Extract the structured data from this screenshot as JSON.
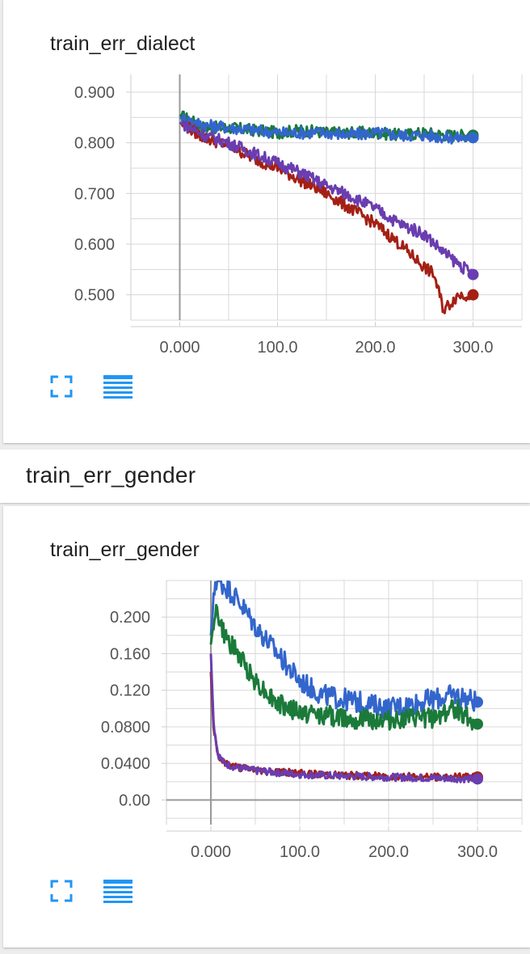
{
  "section": {
    "title": "train_err_gender"
  },
  "colors": {
    "blue": "#3366cc",
    "green": "#1b7a3a",
    "red": "#a42015",
    "purple": "#6a3db0",
    "accent": "#2196f3"
  },
  "icons": [
    "fullscreen-icon",
    "data-table-icon"
  ],
  "chart_data": [
    {
      "type": "line",
      "title": "train_err_dialect",
      "xlabel": "",
      "ylabel": "",
      "xlim": [
        -50,
        350
      ],
      "ylim": [
        0.45,
        0.935
      ],
      "x_ticks": [
        0,
        100,
        200,
        300
      ],
      "x_tick_labels": [
        "0.000",
        "100.0",
        "200.0",
        "300.0"
      ],
      "y_ticks": [
        0.5,
        0.6,
        0.7,
        0.8,
        0.9
      ],
      "y_tick_labels": [
        "0.500",
        "0.600",
        "0.700",
        "0.800",
        "0.900"
      ],
      "grid": true,
      "series": [
        {
          "color": "green",
          "x": [
            0,
            25,
            50,
            75,
            100,
            125,
            150,
            175,
            200,
            225,
            250,
            275,
            300
          ],
          "values": [
            0.855,
            0.83,
            0.83,
            0.825,
            0.82,
            0.825,
            0.82,
            0.82,
            0.82,
            0.815,
            0.82,
            0.815,
            0.815
          ]
        },
        {
          "color": "blue",
          "x": [
            0,
            25,
            50,
            75,
            100,
            125,
            150,
            175,
            200,
            225,
            250,
            275,
            300
          ],
          "values": [
            0.85,
            0.835,
            0.83,
            0.825,
            0.82,
            0.82,
            0.82,
            0.815,
            0.82,
            0.815,
            0.815,
            0.81,
            0.81
          ]
        },
        {
          "color": "red",
          "x": [
            0,
            25,
            50,
            75,
            100,
            125,
            150,
            175,
            200,
            225,
            250,
            260,
            270,
            285,
            300
          ],
          "values": [
            0.84,
            0.81,
            0.795,
            0.77,
            0.75,
            0.725,
            0.7,
            0.67,
            0.64,
            0.6,
            0.555,
            0.54,
            0.47,
            0.5,
            0.5
          ]
        },
        {
          "color": "purple",
          "x": [
            0,
            25,
            50,
            75,
            100,
            125,
            150,
            175,
            200,
            225,
            250,
            275,
            300
          ],
          "values": [
            0.84,
            0.815,
            0.8,
            0.78,
            0.76,
            0.74,
            0.715,
            0.695,
            0.67,
            0.64,
            0.62,
            0.575,
            0.54
          ]
        }
      ]
    },
    {
      "type": "line",
      "title": "train_err_gender",
      "xlabel": "",
      "ylabel": "",
      "xlim": [
        -50,
        350
      ],
      "ylim": [
        -0.027,
        0.24
      ],
      "x_ticks": [
        0,
        100,
        200,
        300
      ],
      "x_tick_labels": [
        "0.000",
        "100.0",
        "200.0",
        "300.0"
      ],
      "y_ticks": [
        0.0,
        0.04,
        0.08,
        0.12,
        0.16,
        0.2
      ],
      "y_tick_labels": [
        "0.00",
        "0.0400",
        "0.0800",
        "0.120",
        "0.160",
        "0.200"
      ],
      "grid": true,
      "series": [
        {
          "color": "blue",
          "x": [
            0,
            5,
            15,
            30,
            50,
            75,
            100,
            125,
            150,
            175,
            200,
            225,
            250,
            275,
            300
          ],
          "values": [
            0.18,
            0.24,
            0.235,
            0.22,
            0.19,
            0.16,
            0.13,
            0.115,
            0.11,
            0.105,
            0.1,
            0.105,
            0.11,
            0.115,
            0.107
          ]
        },
        {
          "color": "green",
          "x": [
            0,
            5,
            15,
            30,
            50,
            75,
            100,
            125,
            150,
            175,
            200,
            225,
            250,
            275,
            300
          ],
          "values": [
            0.17,
            0.21,
            0.18,
            0.16,
            0.13,
            0.105,
            0.095,
            0.093,
            0.09,
            0.088,
            0.087,
            0.088,
            0.09,
            0.1,
            0.083
          ]
        },
        {
          "color": "red",
          "x": [
            0,
            3,
            8,
            15,
            30,
            50,
            100,
            150,
            200,
            250,
            300
          ],
          "values": [
            0.14,
            0.08,
            0.05,
            0.04,
            0.036,
            0.033,
            0.029,
            0.027,
            0.026,
            0.025,
            0.025
          ]
        },
        {
          "color": "purple",
          "x": [
            0,
            3,
            8,
            15,
            30,
            50,
            100,
            150,
            200,
            250,
            300
          ],
          "values": [
            0.16,
            0.085,
            0.05,
            0.04,
            0.035,
            0.032,
            0.028,
            0.026,
            0.025,
            0.024,
            0.023
          ]
        }
      ]
    }
  ]
}
